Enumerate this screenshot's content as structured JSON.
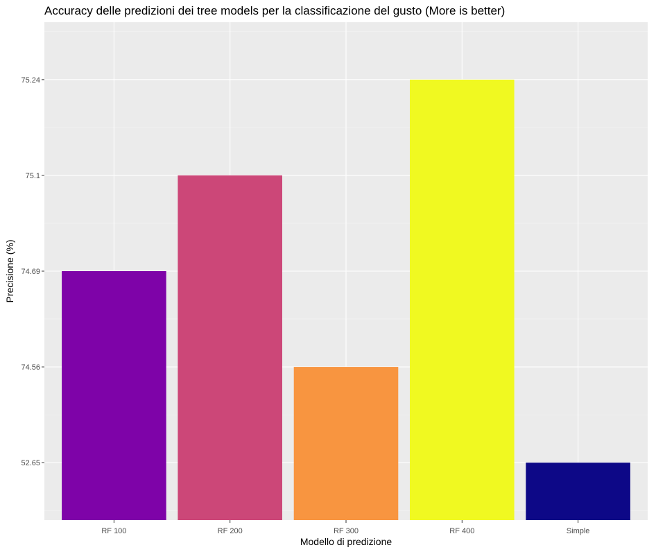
{
  "chart_data": {
    "type": "bar",
    "title": "Accuracy delle predizioni dei tree models per la classificazione del gusto (More is better)",
    "xlabel": "Modello di predizione",
    "ylabel": "Precisione (%)",
    "categories": [
      "RF 100",
      "RF 200",
      "RF 300",
      "RF 400",
      "Simple"
    ],
    "values": [
      74.69,
      75.1,
      74.56,
      75.24,
      52.65
    ],
    "colors": [
      "#7E03A8",
      "#CC4778",
      "#F89540",
      "#F0F921",
      "#0D0887"
    ],
    "y_ticks": [
      "52.65",
      "74.56",
      "74.69",
      "75.1",
      "75.24"
    ],
    "y_scale": "discrete",
    "grid": true,
    "legend": "none",
    "panel_background": "#EBEBEB",
    "grid_color": "#FFFFFF"
  }
}
